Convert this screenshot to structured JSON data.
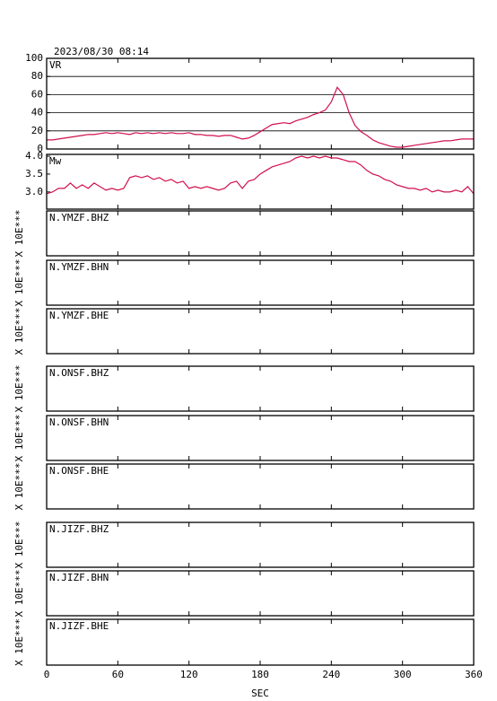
{
  "chart_data": [
    {
      "type": "line",
      "title": "2023/08/30 08:14",
      "x": [
        0,
        5,
        10,
        15,
        20,
        25,
        30,
        35,
        40,
        45,
        50,
        55,
        60,
        65,
        70,
        75,
        80,
        85,
        90,
        95,
        100,
        105,
        110,
        115,
        120,
        125,
        130,
        135,
        140,
        145,
        150,
        155,
        160,
        165,
        170,
        175,
        180,
        185,
        190,
        195,
        200,
        205,
        210,
        215,
        220,
        225,
        230,
        235,
        240,
        245,
        250,
        255,
        260,
        265,
        270,
        275,
        280,
        285,
        290,
        295,
        300,
        305,
        310,
        315,
        320,
        325,
        330,
        335,
        340,
        345,
        350,
        355,
        360
      ],
      "series": [
        {
          "name": "VR",
          "color": "#d0104c",
          "values": [
            10,
            10,
            11,
            12,
            13,
            14,
            15,
            16,
            16,
            17,
            18,
            17,
            18,
            17,
            16,
            18,
            17,
            18,
            17,
            18,
            17,
            18,
            17,
            17,
            18,
            16,
            16,
            15,
            15,
            14,
            15,
            15,
            13,
            11,
            12,
            15,
            19,
            23,
            27,
            28,
            29,
            28,
            31,
            33,
            35,
            38,
            40,
            43,
            52,
            68,
            60,
            40,
            26,
            19,
            15,
            10,
            7,
            5,
            3,
            2,
            2,
            3,
            4,
            5,
            6,
            7,
            8,
            9,
            9,
            10,
            11,
            11,
            11
          ]
        }
      ],
      "xlim": [
        0,
        360
      ],
      "xticks": [
        0,
        60,
        120,
        180,
        240,
        300,
        360
      ],
      "ylim": [
        0,
        100
      ],
      "yticks": [
        0,
        20,
        40,
        60,
        80,
        100
      ],
      "grid": true
    },
    {
      "type": "line",
      "x": [
        0,
        5,
        10,
        15,
        20,
        25,
        30,
        35,
        40,
        45,
        50,
        55,
        60,
        65,
        70,
        75,
        80,
        85,
        90,
        95,
        100,
        105,
        110,
        115,
        120,
        125,
        130,
        135,
        140,
        145,
        150,
        155,
        160,
        165,
        170,
        175,
        180,
        185,
        190,
        195,
        200,
        205,
        210,
        215,
        220,
        225,
        230,
        235,
        240,
        245,
        250,
        255,
        260,
        265,
        270,
        275,
        280,
        285,
        290,
        295,
        300,
        305,
        310,
        315,
        320,
        325,
        330,
        335,
        340,
        345,
        350,
        355,
        360
      ],
      "series": [
        {
          "name": "Mw",
          "color": "#d0104c",
          "values": [
            2.95,
            3.0,
            3.1,
            3.1,
            3.25,
            3.1,
            3.2,
            3.1,
            3.25,
            3.15,
            3.05,
            3.1,
            3.05,
            3.1,
            3.4,
            3.45,
            3.4,
            3.45,
            3.35,
            3.4,
            3.3,
            3.35,
            3.25,
            3.3,
            3.1,
            3.15,
            3.1,
            3.15,
            3.1,
            3.05,
            3.1,
            3.25,
            3.3,
            3.1,
            3.3,
            3.35,
            3.5,
            3.6,
            3.7,
            3.75,
            3.8,
            3.85,
            3.95,
            4.0,
            3.95,
            4.0,
            3.95,
            4.0,
            3.95,
            3.95,
            3.9,
            3.85,
            3.85,
            3.75,
            3.6,
            3.5,
            3.45,
            3.35,
            3.3,
            3.2,
            3.15,
            3.1,
            3.1,
            3.05,
            3.1,
            3.0,
            3.05,
            3.0,
            3.0,
            3.05,
            3.0,
            3.15,
            2.95
          ]
        }
      ],
      "xlim": [
        0,
        360
      ],
      "xticks": [
        0,
        60,
        120,
        180,
        240,
        300,
        360
      ],
      "ylim": [
        2.52,
        4.05
      ],
      "yticks": [
        {
          "value": 3,
          "label": "3.0"
        },
        {
          "value": 3.5,
          "label": "3.5"
        },
        {
          "value": 4,
          "label": "4.0"
        }
      ],
      "grid": false
    },
    {
      "type": "waveform",
      "channels": [
        "N.YMZF.BHZ",
        "N.YMZF.BHN",
        "N.YMZF.BHE",
        "N.ONSF.BHZ",
        "N.ONSF.BHN",
        "N.ONSF.BHE",
        "N.JIZF.BHZ",
        "N.JIZF.BHN",
        "N.JIZF.BHE"
      ],
      "ylabel": "X 10E***",
      "xlabel": "SEC",
      "xlim": [
        0,
        360
      ],
      "xticks": [
        0,
        60,
        120,
        180,
        240,
        300,
        360
      ]
    }
  ]
}
